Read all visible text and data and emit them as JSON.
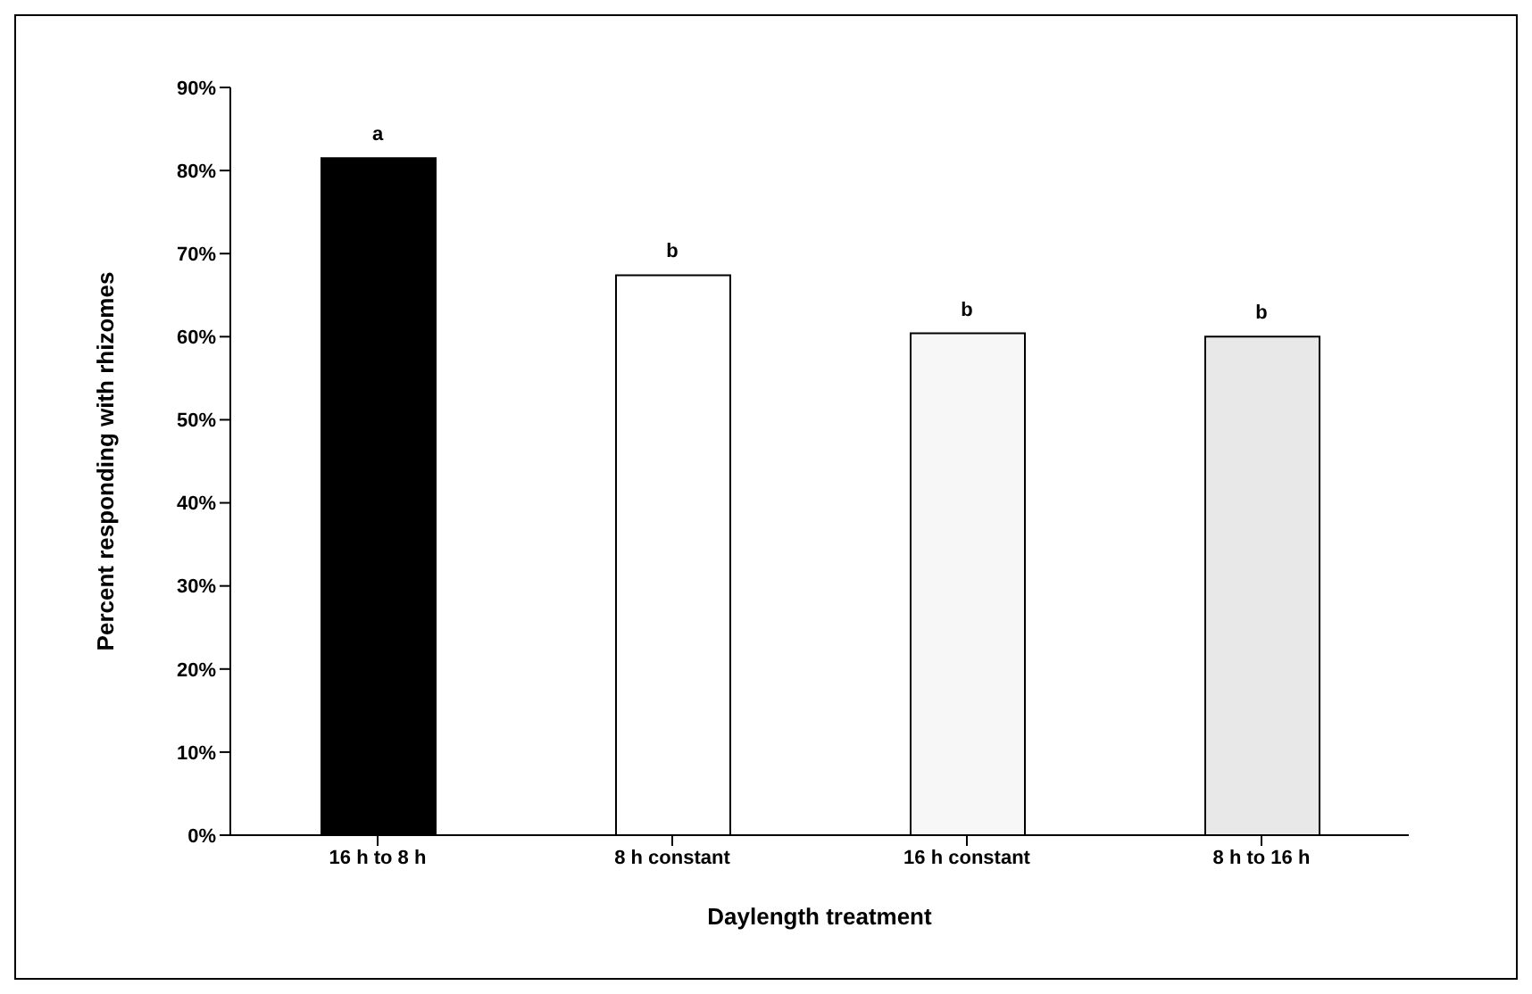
{
  "chart_data": {
    "type": "bar",
    "xlabel": "Daylength treatment",
    "ylabel": "Percent responding with rhizomes",
    "categories": [
      "16 h to 8 h",
      "8 h constant",
      "16 h constant",
      "8 h to 16 h"
    ],
    "values": [
      81.5,
      67.4,
      60.4,
      60
    ],
    "colors": [
      "#000000",
      "#ffffff",
      "#f7f7f7",
      "#e8e8e8"
    ],
    "ylim": [
      0,
      90
    ],
    "yticks": [
      {
        "value": 0,
        "label": "0%"
      },
      {
        "value": 10,
        "label": "10%"
      },
      {
        "value": 20,
        "label": "20%"
      },
      {
        "value": 30,
        "label": "30%"
      },
      {
        "value": 40,
        "label": "40%"
      },
      {
        "value": 50,
        "label": "50%"
      },
      {
        "value": 60,
        "label": "60%"
      },
      {
        "value": 70,
        "label": "70%"
      },
      {
        "value": 80,
        "label": "80%"
      },
      {
        "value": 90,
        "label": "90%"
      }
    ],
    "grid": false,
    "legend": false,
    "annotations": [
      {
        "text": "a",
        "x": "16 h to 8 h",
        "y": 81.5
      },
      {
        "text": "b",
        "x": "8 h constant",
        "y": 67.4
      },
      {
        "text": "b",
        "x": "16 h constant",
        "y": 60.4
      },
      {
        "text": "b",
        "x": "8 h to 16 h",
        "y": 60
      }
    ]
  }
}
